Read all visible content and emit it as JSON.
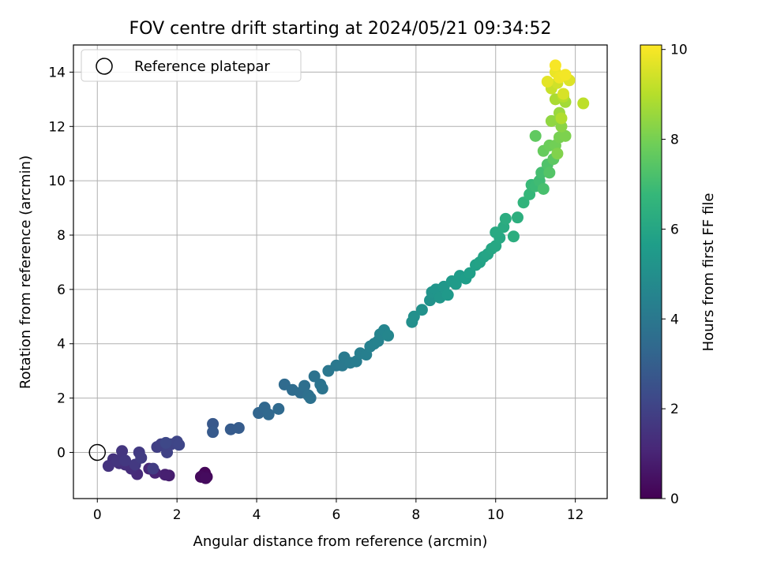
{
  "chart_data": {
    "type": "scatter",
    "title": "FOV centre drift starting at 2024/05/21 09:34:52",
    "xlabel": "Angular distance from reference (arcmin)",
    "ylabel": "Rotation from reference (arcmin)",
    "xlim": [
      -0.6,
      12.8
    ],
    "ylim": [
      -1.7,
      15.0
    ],
    "xticks": [
      0,
      2,
      4,
      6,
      8,
      10,
      12
    ],
    "yticks": [
      0,
      2,
      4,
      6,
      8,
      10,
      12,
      14
    ],
    "grid": true,
    "legend": {
      "position": "top-left",
      "entries": [
        "Reference platepar"
      ]
    },
    "reference_point": {
      "x": 0,
      "y": 0
    },
    "colorbar": {
      "label": "Hours from first FF file",
      "range": [
        0,
        10.1
      ],
      "ticks": [
        0,
        2,
        4,
        6,
        8,
        10
      ],
      "colormap": "viridis"
    },
    "points": [
      [
        2.65,
        -0.85,
        0.1
      ],
      [
        2.7,
        -0.75,
        0.15
      ],
      [
        2.75,
        -0.9,
        0.2
      ],
      [
        2.6,
        -0.9,
        0.25
      ],
      [
        2.72,
        -0.95,
        0.3
      ],
      [
        1.8,
        -0.85,
        0.8
      ],
      [
        1.7,
        -0.82,
        0.9
      ],
      [
        1.45,
        -0.75,
        1.0
      ],
      [
        1.3,
        -0.6,
        1.1
      ],
      [
        1.0,
        -0.8,
        1.2
      ],
      [
        0.85,
        -0.6,
        1.3
      ],
      [
        0.7,
        -0.45,
        1.35
      ],
      [
        0.55,
        -0.4,
        1.4
      ],
      [
        0.4,
        -0.25,
        1.45
      ],
      [
        0.28,
        -0.5,
        1.5
      ],
      [
        0.5,
        -0.3,
        1.55
      ],
      [
        0.62,
        0.05,
        1.6
      ],
      [
        0.7,
        -0.3,
        1.65
      ],
      [
        0.95,
        -0.45,
        1.7
      ],
      [
        1.05,
        0.0,
        1.75
      ],
      [
        1.1,
        -0.2,
        1.8
      ],
      [
        1.4,
        -0.6,
        1.85
      ],
      [
        1.5,
        0.2,
        1.9
      ],
      [
        1.6,
        0.3,
        1.95
      ],
      [
        1.75,
        0.0,
        2.0
      ],
      [
        1.85,
        0.3,
        2.05
      ],
      [
        2.0,
        0.4,
        2.1
      ],
      [
        2.05,
        0.28,
        2.15
      ],
      [
        1.72,
        0.35,
        2.2
      ],
      [
        2.9,
        1.05,
        2.8
      ],
      [
        2.9,
        0.75,
        2.85
      ],
      [
        3.35,
        0.85,
        2.9
      ],
      [
        3.55,
        0.9,
        2.95
      ],
      [
        4.05,
        1.45,
        3.3
      ],
      [
        4.2,
        1.65,
        3.35
      ],
      [
        4.3,
        1.4,
        3.4
      ],
      [
        4.55,
        1.6,
        3.45
      ],
      [
        4.7,
        2.5,
        3.5
      ],
      [
        4.9,
        2.3,
        3.55
      ],
      [
        5.1,
        2.2,
        3.6
      ],
      [
        5.2,
        2.45,
        3.65
      ],
      [
        5.3,
        2.1,
        3.7
      ],
      [
        5.35,
        2.0,
        3.75
      ],
      [
        5.45,
        2.8,
        3.8
      ],
      [
        5.6,
        2.5,
        3.85
      ],
      [
        5.65,
        2.35,
        3.9
      ],
      [
        5.8,
        3.0,
        4.0
      ],
      [
        6.0,
        3.2,
        4.05
      ],
      [
        6.15,
        3.2,
        4.1
      ],
      [
        6.2,
        3.5,
        4.15
      ],
      [
        6.35,
        3.3,
        4.2
      ],
      [
        6.5,
        3.35,
        4.25
      ],
      [
        6.6,
        3.65,
        4.3
      ],
      [
        6.75,
        3.6,
        4.35
      ],
      [
        6.85,
        3.9,
        4.4
      ],
      [
        6.95,
        4.0,
        4.45
      ],
      [
        7.05,
        4.1,
        4.5
      ],
      [
        7.1,
        4.35,
        4.55
      ],
      [
        7.2,
        4.5,
        4.6
      ],
      [
        7.3,
        4.3,
        4.65
      ],
      [
        7.9,
        4.8,
        5.0
      ],
      [
        7.95,
        5.0,
        5.05
      ],
      [
        8.15,
        5.25,
        5.1
      ],
      [
        8.35,
        5.6,
        5.15
      ],
      [
        8.4,
        5.9,
        5.2
      ],
      [
        8.5,
        6.0,
        5.25
      ],
      [
        8.6,
        5.7,
        5.3
      ],
      [
        8.7,
        6.1,
        5.35
      ],
      [
        8.8,
        5.8,
        5.4
      ],
      [
        8.9,
        6.3,
        5.45
      ],
      [
        9.0,
        6.2,
        5.5
      ],
      [
        9.1,
        6.5,
        5.55
      ],
      [
        9.25,
        6.4,
        5.6
      ],
      [
        9.35,
        6.6,
        5.65
      ],
      [
        9.5,
        6.9,
        5.75
      ],
      [
        9.6,
        7.0,
        5.8
      ],
      [
        9.7,
        7.2,
        5.85
      ],
      [
        9.8,
        7.3,
        5.9
      ],
      [
        9.9,
        7.5,
        5.95
      ],
      [
        10.0,
        7.6,
        6.0
      ],
      [
        10.1,
        7.9,
        6.05
      ],
      [
        10.0,
        8.1,
        6.1
      ],
      [
        10.2,
        8.3,
        6.15
      ],
      [
        10.25,
        8.6,
        6.25
      ],
      [
        10.45,
        7.95,
        6.3
      ],
      [
        10.55,
        8.65,
        6.35
      ],
      [
        10.7,
        9.2,
        6.55
      ],
      [
        10.85,
        9.5,
        6.7
      ],
      [
        10.9,
        9.85,
        6.8
      ],
      [
        11.0,
        9.8,
        6.85
      ],
      [
        11.1,
        10.0,
        6.95
      ],
      [
        11.15,
        10.3,
        7.05
      ],
      [
        11.2,
        9.7,
        7.1
      ],
      [
        11.3,
        10.6,
        7.25
      ],
      [
        11.35,
        10.3,
        7.35
      ],
      [
        11.45,
        10.8,
        7.5
      ],
      [
        11.0,
        11.65,
        7.6
      ],
      [
        11.2,
        11.1,
        7.7
      ],
      [
        11.35,
        11.3,
        7.8
      ],
      [
        11.5,
        11.3,
        7.9
      ],
      [
        11.6,
        11.6,
        8.0
      ],
      [
        11.75,
        11.65,
        8.1
      ],
      [
        11.55,
        11.0,
        8.15
      ],
      [
        11.65,
        12.0,
        8.3
      ],
      [
        11.4,
        12.2,
        8.4
      ],
      [
        11.6,
        12.5,
        8.55
      ],
      [
        11.75,
        12.9,
        8.7
      ],
      [
        11.5,
        13.0,
        8.8
      ],
      [
        11.65,
        12.3,
        8.9
      ],
      [
        11.7,
        13.1,
        9.0
      ],
      [
        12.2,
        12.85,
        9.1
      ],
      [
        11.4,
        13.4,
        9.25
      ],
      [
        11.55,
        13.6,
        9.4
      ],
      [
        11.7,
        13.2,
        9.5
      ],
      [
        11.85,
        13.7,
        9.6
      ],
      [
        11.3,
        13.65,
        9.7
      ],
      [
        11.5,
        14.0,
        9.8
      ],
      [
        11.6,
        13.8,
        9.9
      ],
      [
        11.75,
        13.9,
        9.95
      ],
      [
        11.5,
        14.25,
        10.0
      ]
    ]
  }
}
